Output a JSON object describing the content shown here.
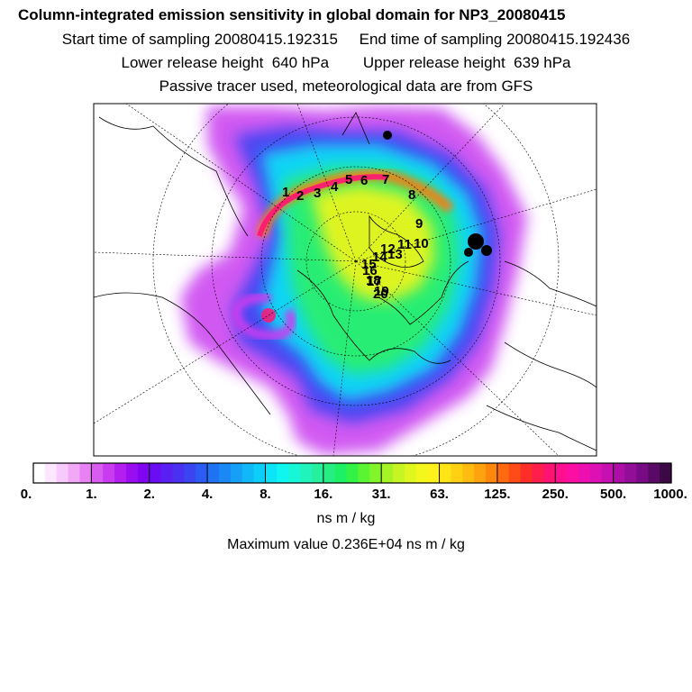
{
  "header": {
    "title": "Column-integrated emission sensitivity in global domain for NP3_20080415",
    "line2": "Start time of sampling 20080415.192315     End time of sampling 20080415.192436",
    "line3": "Lower release height  640 hPa        Upper release height  639 hPa",
    "line4": "Passive tracer used, meteorological data are from GFS"
  },
  "map": {
    "projection": "north polar stereographic",
    "trajectory_labels": [
      "1",
      "2",
      "3",
      "4",
      "5",
      "6",
      "7",
      "8",
      "9",
      "10",
      "11",
      "12",
      "13",
      "14",
      "15",
      "16",
      "17",
      "18",
      "19",
      "20"
    ]
  },
  "colorbar": {
    "ticks": [
      "0.",
      "1.",
      "2.",
      "4.",
      "8.",
      "16.",
      "31.",
      "63.",
      "125.",
      "250.",
      "500.",
      "1000."
    ],
    "colors": [
      "#ffffff",
      "#fde6ff",
      "#f8c9fb",
      "#f1a8f7",
      "#e882f4",
      "#d95cf0",
      "#c83bef",
      "#b21fef",
      "#9a0df0",
      "#8005f3",
      "#6a0cf4",
      "#5a1ff2",
      "#4a30f1",
      "#3a45f1",
      "#2a5bf2",
      "#1f72f3",
      "#1a89f5",
      "#15a0f6",
      "#10b8f8",
      "#0ccff9",
      "#0ce5f8",
      "#0ff5ef",
      "#17f7d8",
      "#20f4bc",
      "#26f09e",
      "#26ee82",
      "#1ef066",
      "#33f246",
      "#5bf432",
      "#82f42a",
      "#a7f426",
      "#c6f523",
      "#e0f71f",
      "#f4f71c",
      "#fff21a",
      "#ffe416",
      "#ffd112",
      "#ffbb0f",
      "#ffa20d",
      "#ff880c",
      "#ff6a10",
      "#ff4b18",
      "#ff2d28",
      "#ff1d4a",
      "#ff1372",
      "#ff0f8f",
      "#fb0ea3",
      "#ee0fb0",
      "#dc10b4",
      "#c610b1",
      "#ac0ea6",
      "#920d98",
      "#780b85",
      "#5a0a66",
      "#3d0846"
    ],
    "units": "ns m / kg"
  },
  "footer": {
    "maximum": "Maximum value  0.236E+04 ns m / kg"
  }
}
